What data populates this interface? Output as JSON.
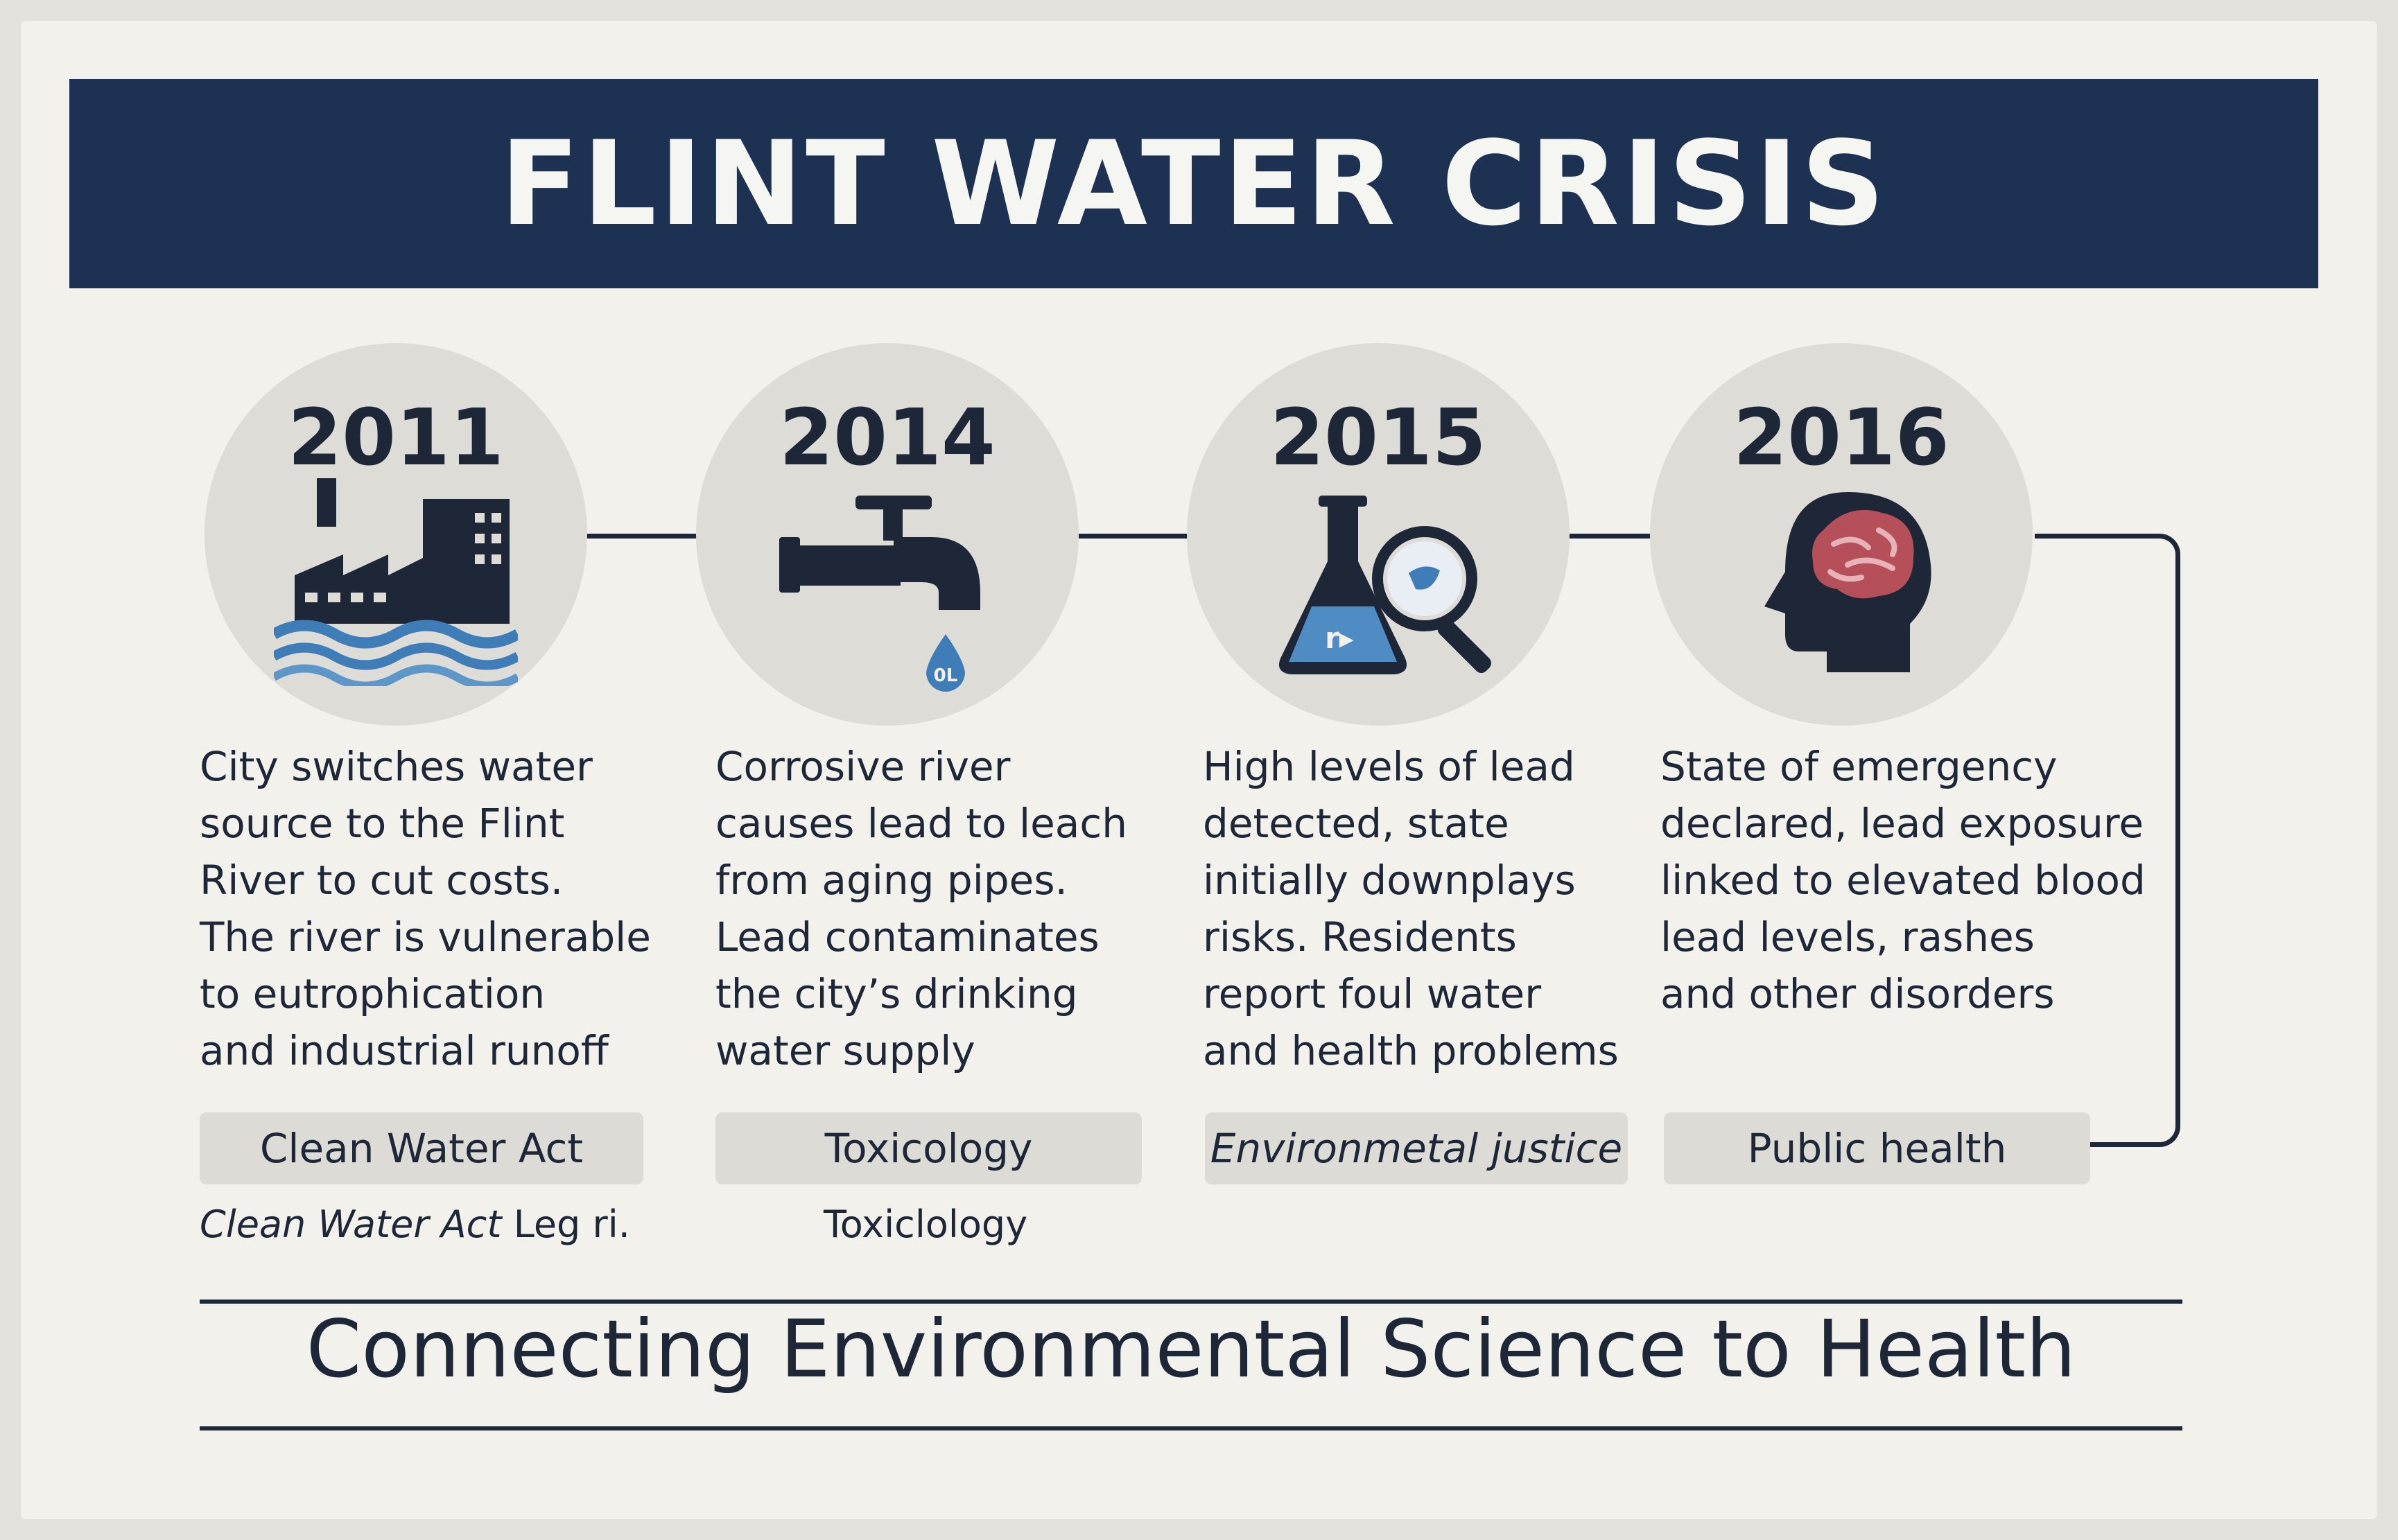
{
  "title": "FLINT WATER CRISIS",
  "colors": {
    "banner": "#1d3253",
    "background": "#f2f1ec",
    "circle": "#dedcd6",
    "text": "#1d2738",
    "accent_blue": "#3f7db8",
    "brain": "#b5505a"
  },
  "events": [
    {
      "year": "2011",
      "icon": "factory-water-icon",
      "description": "City switches water\nsource to the Flint\nRiver to cut costs.\nThe river is vulnerable\nto eutrophication\nand industrial runoff",
      "tag": "Clean Water Act",
      "subnote_italic": "Clean Water Act",
      "subnote_rest": "Leg ri."
    },
    {
      "year": "2014",
      "icon": "faucet-icon",
      "icon_text": "0L",
      "description": "Corrosive river\ncauses lead to leach\nfrom aging pipes.\nLead contaminates\nthe city’s drinking\nwater supply",
      "tag": "Toxicology",
      "subnote": "Toxiclology"
    },
    {
      "year": "2015",
      "icon": "flask-magnifier-icon",
      "description": "High levels of lead\ndetected, state\ninitially downplays\nrisks. Residents\nreport foul water\nand health problems",
      "tag": "Environmetal justice"
    },
    {
      "year": "2016",
      "icon": "brain-head-icon",
      "description": "State of emergency\ndeclared, lead exposure\nlinked to elevated blood\nlead levels, rashes\nand other disorders",
      "tag": "Public health"
    }
  ],
  "footer": "Connecting Environmental Science to Health"
}
